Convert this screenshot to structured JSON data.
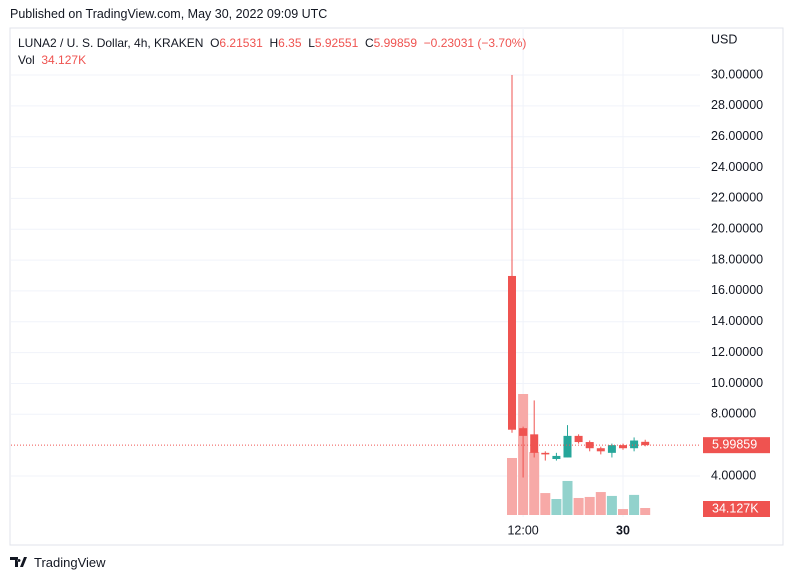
{
  "published": "Published on TradingView.com, May 30, 2022 09:09 UTC",
  "footer": "TradingView",
  "chart_data": {
    "type": "candlestick",
    "symbol": "LUNA2 / U. S. Dollar, 4h, KRAKEN",
    "ohlc_letters": [
      "O",
      "H",
      "L",
      "C"
    ],
    "change": "−0.23031 (−3.70%)",
    "volume_title": "Vol",
    "volume_label": "34.127K",
    "currency": "USD",
    "categories": [
      null,
      "12:00",
      null,
      null,
      null,
      null,
      null,
      null,
      null,
      null,
      "30",
      null,
      null
    ],
    "open": [
      16.97,
      7.1,
      6.7,
      5.5,
      5.1,
      5.2,
      6.6,
      6.2,
      5.8,
      5.5,
      6.0,
      5.8,
      6.21531
    ],
    "high": [
      30,
      7.2,
      8.9,
      5.6,
      5.5,
      7.3,
      6.7,
      6.3,
      5.9,
      6.1,
      6.1,
      6.5,
      6.35
    ],
    "low": [
      6.8,
      3.9,
      5.2,
      5.0,
      5.0,
      5.2,
      6.1,
      5.6,
      5.4,
      5.2,
      5.7,
      5.6,
      5.92551
    ],
    "close": [
      7.0,
      6.6,
      5.5,
      5.4,
      5.3,
      6.6,
      6.2,
      5.8,
      5.6,
      6.0,
      5.8,
      6.3,
      5.99859
    ],
    "volume": [
      278000,
      590000,
      307000,
      107000,
      78000,
      166000,
      83000,
      88000,
      112000,
      93000,
      29000,
      98000,
      34127
    ],
    "up_color": "#26a69a",
    "down_color": "#ef5350",
    "up_volume_color": "#92d2cc",
    "down_volume_color": "#f7a9a7",
    "ylim": [
      1.34,
      33.05
    ],
    "yticks": [
      {
        "value": 4,
        "label": "4.00000"
      },
      {
        "value": 8,
        "label": "8.00000"
      },
      {
        "value": 10,
        "label": "10.00000"
      },
      {
        "value": 12,
        "label": "12.00000"
      },
      {
        "value": 14,
        "label": "14.00000"
      },
      {
        "value": 16,
        "label": "16.00000"
      },
      {
        "value": 18,
        "label": "18.00000"
      },
      {
        "value": 20,
        "label": "20.00000"
      },
      {
        "value": 22,
        "label": "22.00000"
      },
      {
        "value": 24,
        "label": "24.00000"
      },
      {
        "value": 26,
        "label": "26.00000"
      },
      {
        "value": 28,
        "label": "28.00000"
      },
      {
        "value": 30,
        "label": "30.00000"
      }
    ],
    "grid": true
  }
}
